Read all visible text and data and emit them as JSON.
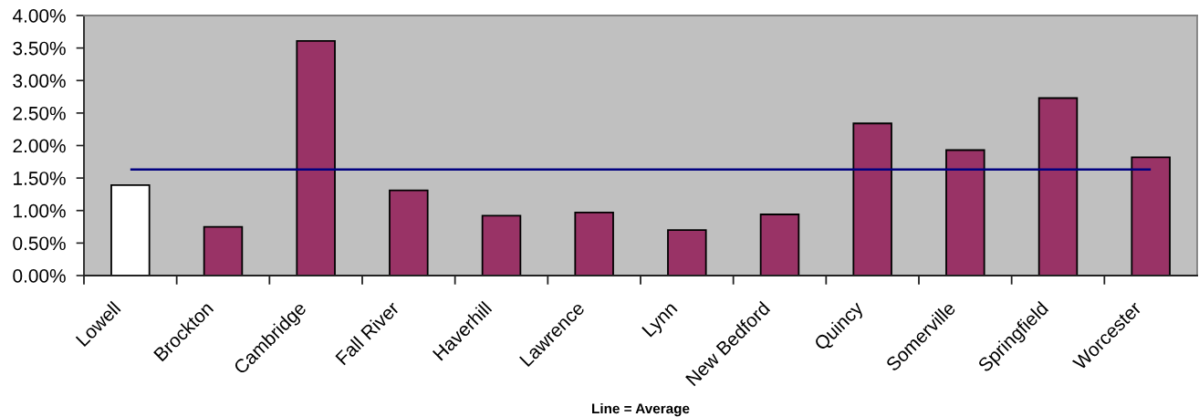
{
  "chart_data": {
    "type": "bar",
    "xlabel": "Line = Average",
    "categories": [
      "Lowell",
      "Brockton",
      "Cambridge",
      "Fall River",
      "Haverhill",
      "Lawrence",
      "Lynn",
      "New Bedford",
      "Quincy",
      "Somerville",
      "Springfield",
      "Worcester"
    ],
    "values": [
      1.39,
      0.75,
      3.61,
      1.31,
      0.92,
      0.97,
      0.7,
      0.94,
      2.34,
      1.93,
      2.73,
      1.82
    ],
    "colors": [
      "#ffffff",
      "#993366",
      "#993366",
      "#993366",
      "#993366",
      "#993366",
      "#993366",
      "#993366",
      "#993366",
      "#993366",
      "#993366",
      "#993366"
    ],
    "ref_lines": [
      {
        "axis": "y",
        "value": 1.63,
        "color": "#000080",
        "line_style": "solid"
      }
    ],
    "ylim": [
      0,
      4
    ],
    "yticks": [
      {
        "value": 0,
        "label": "0.00%"
      },
      {
        "value": 0.5,
        "label": "0.50%"
      },
      {
        "value": 1,
        "label": "1.00%"
      },
      {
        "value": 1.5,
        "label": "1.50%"
      },
      {
        "value": 2,
        "label": "2.00%"
      },
      {
        "value": 2.5,
        "label": "2.50%"
      },
      {
        "value": 3,
        "label": "3.00%"
      },
      {
        "value": 3.5,
        "label": "3.50%"
      },
      {
        "value": 4,
        "label": "4.00%"
      }
    ]
  }
}
